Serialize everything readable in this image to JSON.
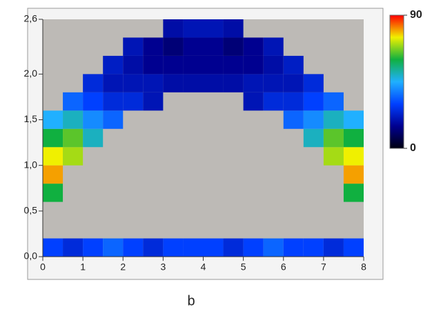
{
  "chart_data": {
    "type": "heatmap",
    "caption": "b",
    "x_edges": [
      0,
      0.5,
      1,
      1.5,
      2,
      2.5,
      3,
      3.5,
      4,
      4.5,
      5,
      5.5,
      6,
      6.5,
      7,
      7.5,
      8
    ],
    "y_edges": [
      0,
      0.2,
      0.4,
      0.6,
      0.8,
      1.0,
      1.2,
      1.4,
      1.6,
      1.8,
      2.0,
      2.2,
      2.4,
      2.6
    ],
    "values": [
      [
        30,
        25,
        30,
        35,
        30,
        25,
        30,
        30,
        30,
        25,
        30,
        35,
        30,
        30,
        25,
        30
      ],
      [
        null,
        null,
        null,
        null,
        null,
        null,
        null,
        null,
        null,
        null,
        null,
        null,
        null,
        null,
        null,
        null
      ],
      [
        null,
        null,
        null,
        null,
        null,
        null,
        null,
        null,
        null,
        null,
        null,
        null,
        null,
        null,
        null,
        null
      ],
      [
        60,
        null,
        null,
        null,
        null,
        null,
        null,
        null,
        null,
        null,
        null,
        null,
        null,
        null,
        null,
        60
      ],
      [
        80,
        null,
        null,
        null,
        null,
        null,
        null,
        null,
        null,
        null,
        null,
        null,
        null,
        null,
        null,
        80
      ],
      [
        75,
        70,
        null,
        null,
        null,
        null,
        null,
        null,
        null,
        null,
        null,
        null,
        null,
        null,
        70,
        75
      ],
      [
        60,
        65,
        50,
        null,
        null,
        null,
        null,
        null,
        null,
        null,
        null,
        null,
        null,
        50,
        65,
        60
      ],
      [
        45,
        50,
        40,
        35,
        null,
        null,
        null,
        null,
        null,
        null,
        null,
        null,
        35,
        40,
        50,
        45
      ],
      [
        null,
        35,
        30,
        25,
        25,
        20,
        null,
        null,
        null,
        null,
        20,
        25,
        25,
        30,
        35,
        null
      ],
      [
        null,
        null,
        25,
        20,
        20,
        20,
        18,
        18,
        18,
        18,
        20,
        20,
        20,
        25,
        null,
        null
      ],
      [
        null,
        null,
        null,
        22,
        18,
        15,
        15,
        15,
        15,
        15,
        15,
        18,
        22,
        null,
        null,
        null
      ],
      [
        null,
        null,
        null,
        null,
        20,
        15,
        12,
        15,
        15,
        12,
        15,
        20,
        null,
        null,
        null,
        null
      ],
      [
        null,
        null,
        null,
        null,
        null,
        null,
        18,
        20,
        20,
        18,
        null,
        null,
        null,
        null,
        null,
        null
      ]
    ],
    "xlim": [
      0,
      8
    ],
    "xticks": [
      0,
      1,
      2,
      3,
      4,
      5,
      6,
      7,
      8
    ],
    "ylim": [
      0,
      2.6
    ],
    "yticks": [
      {
        "value": 0,
        "label": "0,0"
      },
      {
        "value": 0.5,
        "label": "0,5"
      },
      {
        "value": 1.0,
        "label": "1,0"
      },
      {
        "value": 1.5,
        "label": "1,5"
      },
      {
        "value": 2.0,
        "label": "2,0"
      },
      {
        "value": 2.6,
        "label": "2,6"
      }
    ],
    "clim": [
      0,
      90
    ],
    "colorbar_ticks": [
      0,
      90
    ],
    "colormap": [
      "#000010",
      "#000090",
      "#0040ff",
      "#20b0ff",
      "#10b040",
      "#f0f000",
      "#ff0000"
    ]
  }
}
